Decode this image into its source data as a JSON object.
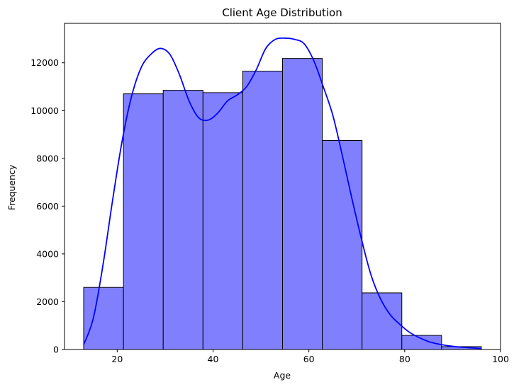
{
  "chart_data": {
    "type": "bar",
    "subtype": "histogram-with-kde",
    "title": "Client Age Distribution",
    "xlabel": "Age",
    "ylabel": "Frequency",
    "xlim": [
      9,
      100
    ],
    "ylim": [
      0,
      13650
    ],
    "xticks": [
      20,
      40,
      60,
      80,
      100
    ],
    "yticks": [
      0,
      2000,
      4000,
      6000,
      8000,
      10000,
      12000
    ],
    "grid": false,
    "bar_color": "#8080ff",
    "bar_edge_color": "#000000",
    "kde_color": "#0000ff",
    "bins": [
      {
        "x0": 13.0,
        "x1": 21.3,
        "value": 2600
      },
      {
        "x0": 21.3,
        "x1": 29.6,
        "value": 10700
      },
      {
        "x0": 29.6,
        "x1": 37.9,
        "value": 10850
      },
      {
        "x0": 37.9,
        "x1": 46.2,
        "value": 10750
      },
      {
        "x0": 46.2,
        "x1": 54.5,
        "value": 11650
      },
      {
        "x0": 54.5,
        "x1": 62.8,
        "value": 12180
      },
      {
        "x0": 62.8,
        "x1": 71.1,
        "value": 8750
      },
      {
        "x0": 71.1,
        "x1": 79.4,
        "value": 2370
      },
      {
        "x0": 79.4,
        "x1": 87.7,
        "value": 590
      },
      {
        "x0": 87.7,
        "x1": 96.0,
        "value": 120
      }
    ],
    "kde": {
      "x": [
        13,
        15,
        17,
        19,
        21,
        23,
        25,
        27,
        29,
        31,
        33,
        35,
        37,
        39,
        41,
        43,
        45,
        47,
        49,
        51,
        53,
        55,
        57,
        59,
        61,
        63,
        65,
        67,
        69,
        71,
        73,
        75,
        77,
        79,
        81,
        83,
        85,
        87,
        89,
        91,
        93,
        96
      ],
      "y": [
        200,
        1300,
        3500,
        6200,
        8700,
        10600,
        11800,
        12350,
        12600,
        12350,
        11500,
        10400,
        9700,
        9600,
        9900,
        10400,
        10650,
        11000,
        11700,
        12600,
        12980,
        13030,
        12980,
        12800,
        12100,
        11000,
        9800,
        8100,
        6300,
        4600,
        3100,
        2100,
        1450,
        1050,
        720,
        500,
        330,
        230,
        160,
        110,
        80,
        40
      ]
    }
  }
}
